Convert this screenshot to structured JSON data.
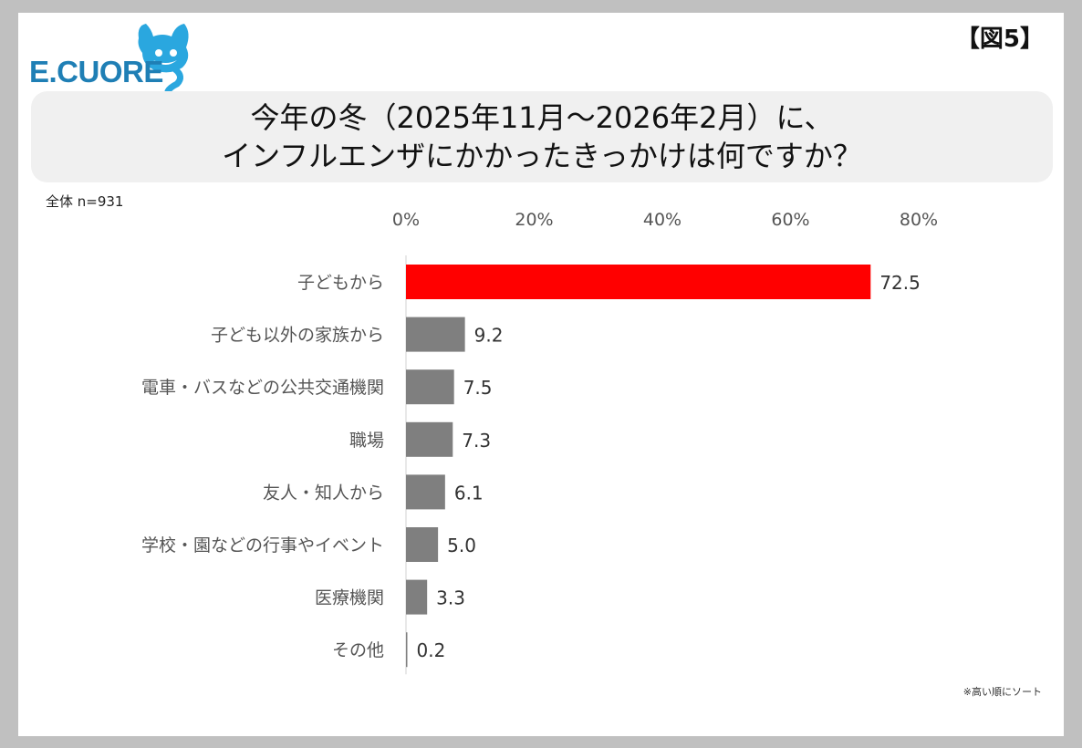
{
  "logo": {
    "text": "E.CUORE",
    "icon": "dog-mascot-question-mark-icon"
  },
  "figure_label": "【図5】",
  "title_lines": [
    "今年の冬（2025年11月～2026年2月）に、",
    "インフルエンザにかかったきっかけは何ですか？"
  ],
  "sample_label": "全体 n=931",
  "note": "※高い順にソート",
  "colors": {
    "highlight": "#ff0000",
    "bar": "#7f7f7f",
    "frame": "#c0c0c0",
    "title_bg": "#f0f0f0",
    "logo": "#1f7fb5"
  },
  "chart_data": {
    "type": "bar",
    "orientation": "horizontal",
    "categories": [
      "子どもから",
      "子ども以外の家族から",
      "電車・バスなどの公共交通機関",
      "職場",
      "友人・知人から",
      "学校・園などの行事やイベント",
      "医療機関",
      "その他"
    ],
    "values": [
      72.5,
      9.2,
      7.5,
      7.3,
      6.1,
      5.0,
      3.3,
      0.2
    ],
    "value_labels": [
      "72.5",
      "9.2",
      "7.5",
      "7.3",
      "6.1",
      "5.0",
      "3.3",
      "0.2"
    ],
    "xlim": [
      0,
      80
    ],
    "xticks": [
      0,
      20,
      40,
      60,
      80
    ],
    "xtick_labels": [
      "0%",
      "20%",
      "40%",
      "60%",
      "80%"
    ],
    "axis_position": "top",
    "grid": false,
    "highlight_index": 0
  }
}
